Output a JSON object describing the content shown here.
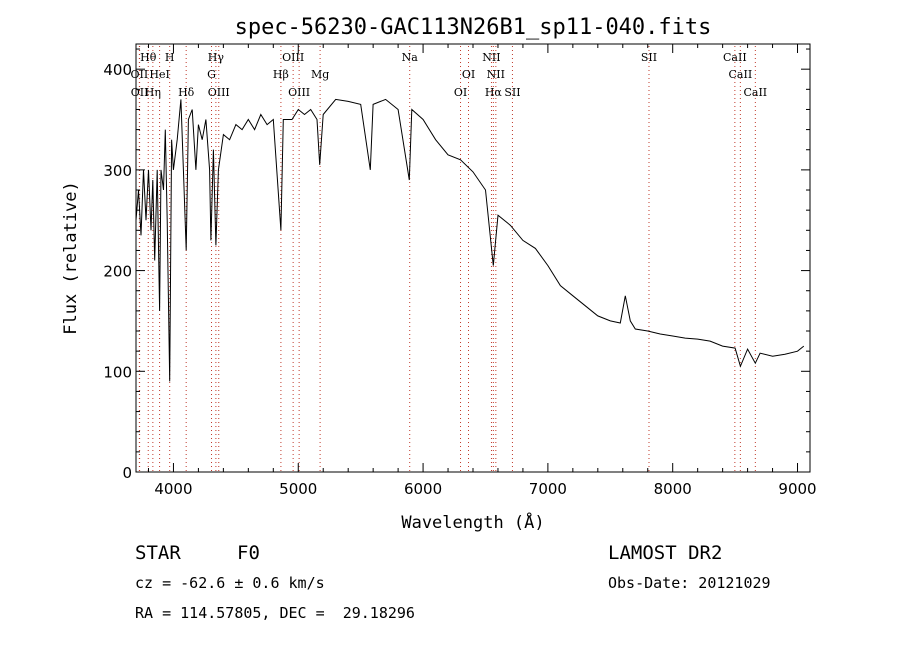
{
  "chart_data": {
    "type": "line",
    "title": "spec-56230-GAC113N26B1_sp11-040.fits",
    "xlabel": "Wavelength (Å)",
    "ylabel": "Flux (relative)",
    "xlim": [
      3700,
      9100
    ],
    "ylim": [
      0,
      425
    ],
    "x_ticks": [
      4000,
      5000,
      6000,
      7000,
      8000,
      9000
    ],
    "y_ticks": [
      0,
      100,
      200,
      300,
      400
    ],
    "grid": false,
    "series": [
      {
        "color": "#000000",
        "points": [
          [
            3700,
            250
          ],
          [
            3720,
            280
          ],
          [
            3740,
            235
          ],
          [
            3760,
            300
          ],
          [
            3780,
            250
          ],
          [
            3800,
            300
          ],
          [
            3820,
            240
          ],
          [
            3835,
            290
          ],
          [
            3850,
            210
          ],
          [
            3870,
            300
          ],
          [
            3889,
            160
          ],
          [
            3900,
            300
          ],
          [
            3920,
            280
          ],
          [
            3935,
            340
          ],
          [
            3950,
            250
          ],
          [
            3970,
            90
          ],
          [
            3985,
            330
          ],
          [
            4000,
            300
          ],
          [
            4030,
            330
          ],
          [
            4060,
            370
          ],
          [
            4080,
            300
          ],
          [
            4102,
            220
          ],
          [
            4120,
            350
          ],
          [
            4150,
            360
          ],
          [
            4180,
            300
          ],
          [
            4200,
            345
          ],
          [
            4230,
            330
          ],
          [
            4260,
            350
          ],
          [
            4290,
            300
          ],
          [
            4300,
            230
          ],
          [
            4320,
            320
          ],
          [
            4340,
            225
          ],
          [
            4360,
            300
          ],
          [
            4400,
            335
          ],
          [
            4450,
            330
          ],
          [
            4500,
            345
          ],
          [
            4550,
            340
          ],
          [
            4600,
            350
          ],
          [
            4650,
            340
          ],
          [
            4700,
            355
          ],
          [
            4750,
            345
          ],
          [
            4800,
            350
          ],
          [
            4861,
            240
          ],
          [
            4880,
            350
          ],
          [
            4950,
            350
          ],
          [
            5000,
            360
          ],
          [
            5050,
            355
          ],
          [
            5100,
            360
          ],
          [
            5150,
            350
          ],
          [
            5172,
            305
          ],
          [
            5200,
            355
          ],
          [
            5300,
            370
          ],
          [
            5400,
            368
          ],
          [
            5500,
            365
          ],
          [
            5577,
            300
          ],
          [
            5600,
            365
          ],
          [
            5700,
            370
          ],
          [
            5800,
            360
          ],
          [
            5890,
            290
          ],
          [
            5910,
            360
          ],
          [
            6000,
            350
          ],
          [
            6100,
            330
          ],
          [
            6200,
            315
          ],
          [
            6300,
            310
          ],
          [
            6400,
            298
          ],
          [
            6500,
            280
          ],
          [
            6563,
            205
          ],
          [
            6600,
            255
          ],
          [
            6700,
            245
          ],
          [
            6800,
            230
          ],
          [
            6900,
            222
          ],
          [
            7000,
            205
          ],
          [
            7100,
            185
          ],
          [
            7200,
            175
          ],
          [
            7300,
            165
          ],
          [
            7400,
            155
          ],
          [
            7500,
            150
          ],
          [
            7580,
            148
          ],
          [
            7620,
            175
          ],
          [
            7660,
            150
          ],
          [
            7700,
            142
          ],
          [
            7800,
            140
          ],
          [
            7900,
            137
          ],
          [
            8000,
            135
          ],
          [
            8100,
            133
          ],
          [
            8200,
            132
          ],
          [
            8300,
            130
          ],
          [
            8400,
            125
          ],
          [
            8500,
            123
          ],
          [
            8542,
            105
          ],
          [
            8600,
            122
          ],
          [
            8662,
            108
          ],
          [
            8700,
            118
          ],
          [
            8800,
            115
          ],
          [
            8900,
            117
          ],
          [
            9000,
            120
          ],
          [
            9050,
            125
          ]
        ]
      }
    ],
    "line_markers": [
      {
        "label": "Hθ",
        "x": 3798,
        "row": 0
      },
      {
        "label": "H",
        "x": 3970,
        "row": 0
      },
      {
        "label": "Hγ",
        "x": 4340,
        "row": 0
      },
      {
        "label": "OIII",
        "x": 4959,
        "row": 0
      },
      {
        "label": "Na",
        "x": 5893,
        "row": 0
      },
      {
        "label": "NII",
        "x": 6548,
        "row": 0
      },
      {
        "label": "SII",
        "x": 7810,
        "row": 0
      },
      {
        "label": "CaII",
        "x": 8498,
        "row": 0
      },
      {
        "label": "OII",
        "x": 3727,
        "row": 1
      },
      {
        "label": "HeI",
        "x": 3889,
        "row": 1
      },
      {
        "label": "G",
        "x": 4305,
        "row": 1
      },
      {
        "label": "Hβ",
        "x": 4861,
        "row": 1
      },
      {
        "label": "Mg",
        "x": 5175,
        "row": 1
      },
      {
        "label": "OI",
        "x": 6364,
        "row": 1
      },
      {
        "label": "NII",
        "x": 6583,
        "row": 1
      },
      {
        "label": "CaII",
        "x": 8542,
        "row": 1
      },
      {
        "label": "OII",
        "x": 3729,
        "row": 2
      },
      {
        "label": "Hη",
        "x": 3835,
        "row": 2
      },
      {
        "label": "Hδ",
        "x": 4102,
        "row": 2
      },
      {
        "label": "OIII",
        "x": 4363,
        "row": 2
      },
      {
        "label": "OIII",
        "x": 5007,
        "row": 2
      },
      {
        "label": "OI",
        "x": 6300,
        "row": 2
      },
      {
        "label": "Hα",
        "x": 6563,
        "row": 2
      },
      {
        "label": "SII",
        "x": 6716,
        "row": 2
      },
      {
        "label": "CaII",
        "x": 8662,
        "row": 2
      }
    ]
  },
  "info": {
    "object_class": "STAR",
    "subclass": "F0",
    "survey": "LAMOST DR2",
    "redshift": "cz = -62.6 ± 0.6 km/s",
    "obs_date": "Obs-Date: 20121029",
    "coords": "RA = 114.57805, DEC =  29.18296"
  }
}
